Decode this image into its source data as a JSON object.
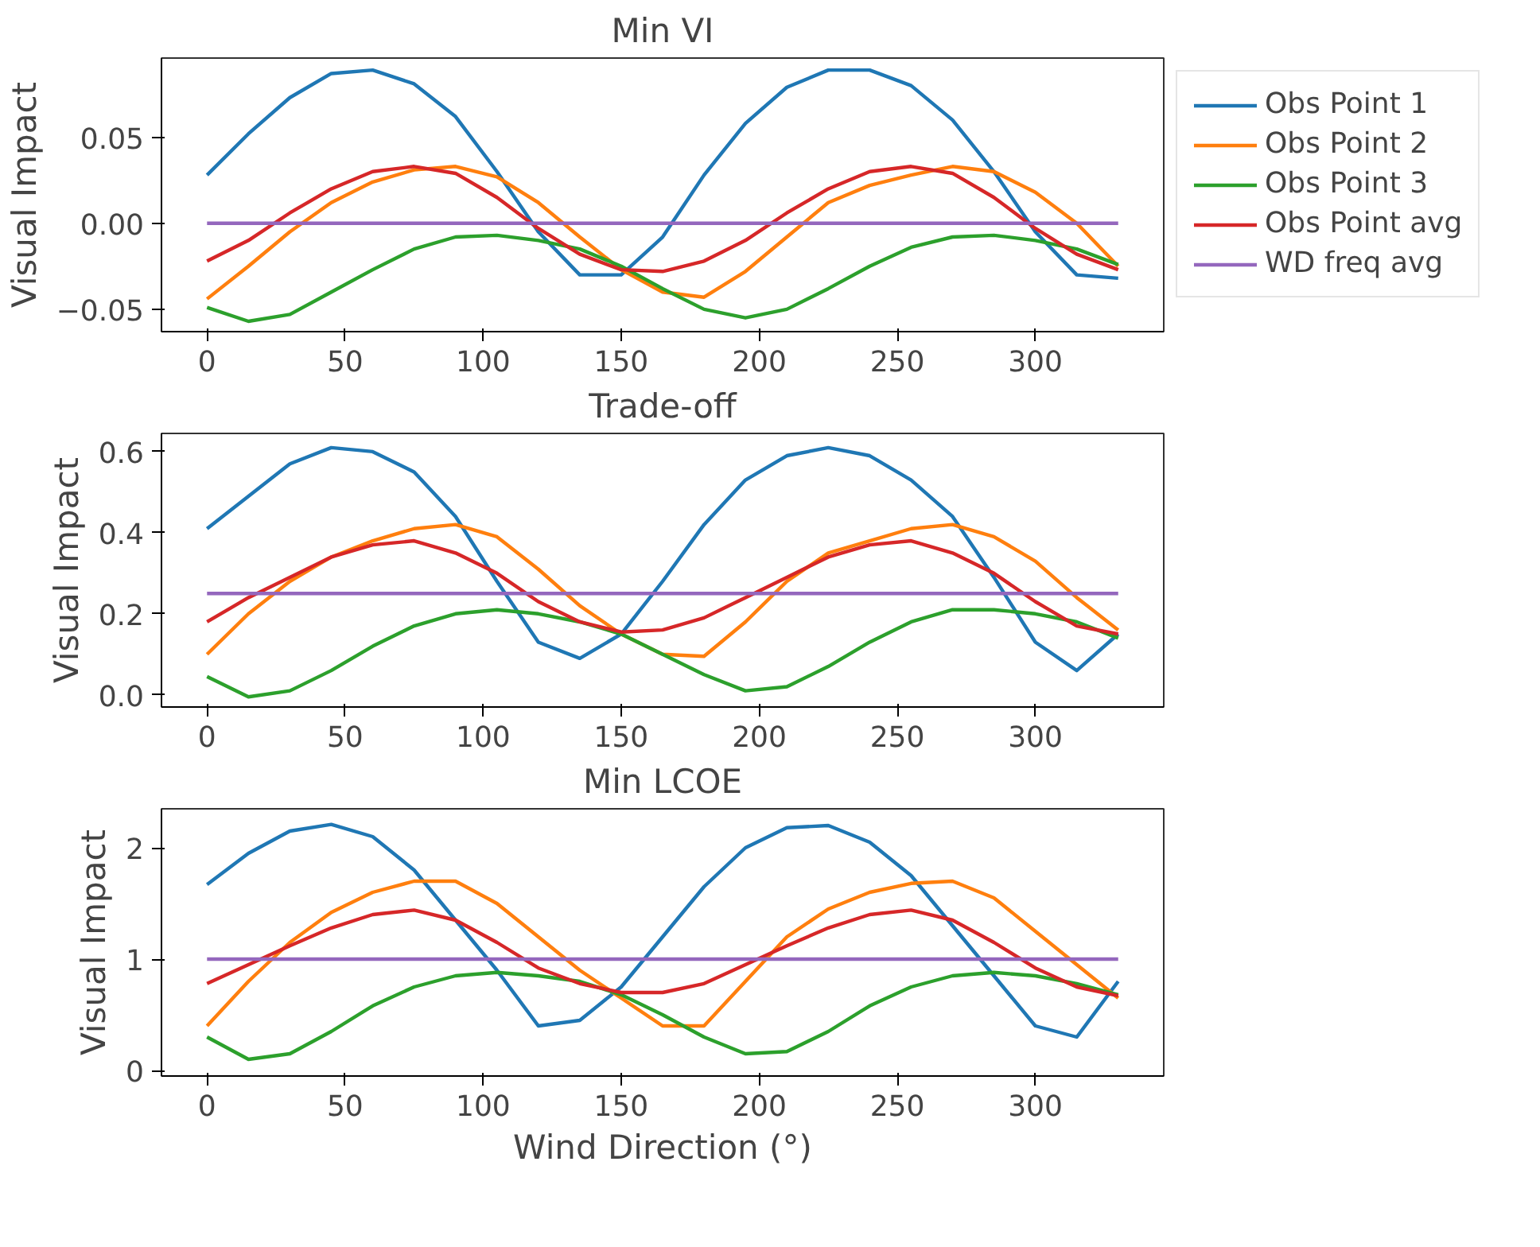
{
  "chart_data": [
    {
      "type": "line",
      "title": "Min VI",
      "ylabel": "Visual Impact",
      "xlim": [
        -16.5,
        346.5
      ],
      "xticks": [
        0,
        50,
        100,
        150,
        200,
        250,
        300
      ],
      "ylim": [
        -0.063,
        0.096
      ],
      "yticks": [
        {
          "value": -0.05,
          "label": "−0.05"
        },
        {
          "value": 0,
          "label": "0.00"
        },
        {
          "value": 0.05,
          "label": "0.05"
        }
      ],
      "grid": false,
      "legend": "right",
      "x": [
        0,
        15,
        30,
        45,
        60,
        75,
        90,
        105,
        120,
        135,
        150,
        165,
        180,
        195,
        210,
        225,
        240,
        255,
        270,
        285,
        300,
        315,
        330
      ],
      "series": [
        {
          "name": "Obs Point 1",
          "color": "#1f77b4",
          "values": [
            0.028,
            0.052,
            0.073,
            0.087,
            0.089,
            0.081,
            0.062,
            0.03,
            -0.005,
            -0.03,
            -0.03,
            -0.008,
            0.028,
            0.058,
            0.079,
            0.089,
            0.089,
            0.08,
            0.06,
            0.03,
            -0.005,
            -0.03,
            -0.032
          ]
        },
        {
          "name": "Obs Point 2",
          "color": "#ff7f0e",
          "values": [
            -0.044,
            -0.025,
            -0.005,
            0.012,
            0.024,
            0.031,
            0.033,
            0.027,
            0.012,
            -0.008,
            -0.027,
            -0.04,
            -0.043,
            -0.028,
            -0.008,
            0.012,
            0.022,
            0.028,
            0.033,
            0.03,
            0.018,
            0.0,
            -0.025
          ]
        },
        {
          "name": "Obs Point 3",
          "color": "#2ca02c",
          "values": [
            -0.049,
            -0.057,
            -0.053,
            -0.04,
            -0.027,
            -0.015,
            -0.008,
            -0.007,
            -0.01,
            -0.015,
            -0.025,
            -0.038,
            -0.05,
            -0.055,
            -0.05,
            -0.038,
            -0.025,
            -0.014,
            -0.008,
            -0.007,
            -0.01,
            -0.015,
            -0.024
          ]
        },
        {
          "name": "Obs Point avg",
          "color": "#d62728",
          "values": [
            -0.022,
            -0.01,
            0.006,
            0.02,
            0.03,
            0.033,
            0.029,
            0.015,
            -0.003,
            -0.018,
            -0.027,
            -0.028,
            -0.022,
            -0.01,
            0.006,
            0.02,
            0.03,
            0.033,
            0.029,
            0.015,
            -0.003,
            -0.018,
            -0.027
          ]
        },
        {
          "name": "WD freq avg",
          "color": "#9467bd",
          "values": [
            0,
            0,
            0,
            0,
            0,
            0,
            0,
            0,
            0,
            0,
            0,
            0,
            0,
            0,
            0,
            0,
            0,
            0,
            0,
            0,
            0,
            0,
            0
          ]
        }
      ]
    },
    {
      "type": "line",
      "title": "Trade-off",
      "ylabel": "Visual Impact",
      "xlim": [
        -16.5,
        346.5
      ],
      "xticks": [
        0,
        50,
        100,
        150,
        200,
        250,
        300
      ],
      "ylim": [
        -0.03,
        0.645
      ],
      "yticks": [
        {
          "value": 0,
          "label": "0.0"
        },
        0.2,
        0.4,
        0.6
      ],
      "grid": false,
      "x": [
        0,
        15,
        30,
        45,
        60,
        75,
        90,
        105,
        120,
        135,
        150,
        165,
        180,
        195,
        210,
        225,
        240,
        255,
        270,
        285,
        300,
        315,
        330
      ],
      "series": [
        {
          "color": "#1f77b4",
          "values": [
            0.41,
            0.49,
            0.57,
            0.61,
            0.6,
            0.55,
            0.44,
            0.28,
            0.13,
            0.09,
            0.15,
            0.28,
            0.42,
            0.53,
            0.59,
            0.61,
            0.59,
            0.53,
            0.44,
            0.29,
            0.13,
            0.06,
            0.15
          ]
        },
        {
          "color": "#ff7f0e",
          "values": [
            0.1,
            0.2,
            0.28,
            0.34,
            0.38,
            0.41,
            0.42,
            0.39,
            0.31,
            0.22,
            0.15,
            0.1,
            0.095,
            0.18,
            0.28,
            0.35,
            0.38,
            0.41,
            0.42,
            0.39,
            0.33,
            0.24,
            0.16
          ]
        },
        {
          "color": "#2ca02c",
          "values": [
            0.045,
            -0.005,
            0.01,
            0.06,
            0.12,
            0.17,
            0.2,
            0.21,
            0.2,
            0.18,
            0.15,
            0.1,
            0.05,
            0.01,
            0.02,
            0.07,
            0.13,
            0.18,
            0.21,
            0.21,
            0.2,
            0.18,
            0.14
          ]
        },
        {
          "color": "#d62728",
          "values": [
            0.18,
            0.24,
            0.29,
            0.34,
            0.37,
            0.38,
            0.35,
            0.3,
            0.23,
            0.18,
            0.155,
            0.16,
            0.19,
            0.24,
            0.29,
            0.34,
            0.37,
            0.38,
            0.35,
            0.3,
            0.23,
            0.17,
            0.15
          ]
        },
        {
          "color": "#9467bd",
          "values": [
            0.25,
            0.25,
            0.25,
            0.25,
            0.25,
            0.25,
            0.25,
            0.25,
            0.25,
            0.25,
            0.25,
            0.25,
            0.25,
            0.25,
            0.25,
            0.25,
            0.25,
            0.25,
            0.25,
            0.25,
            0.25,
            0.25,
            0.25
          ]
        }
      ]
    },
    {
      "type": "line",
      "title": "Min LCOE",
      "xlabel": "Wind Direction (°)",
      "ylabel": "Visual Impact",
      "xlim": [
        -16.5,
        346.5
      ],
      "xticks": [
        0,
        50,
        100,
        150,
        200,
        250,
        300
      ],
      "ylim": [
        -0.05,
        2.35
      ],
      "yticks": [
        0,
        1,
        2
      ],
      "grid": false,
      "x": [
        0,
        15,
        30,
        45,
        60,
        75,
        90,
        105,
        120,
        135,
        150,
        165,
        180,
        195,
        210,
        225,
        240,
        255,
        270,
        285,
        300,
        315,
        330
      ],
      "series": [
        {
          "color": "#1f77b4",
          "values": [
            1.67,
            1.95,
            2.15,
            2.21,
            2.1,
            1.8,
            1.35,
            0.9,
            0.4,
            0.45,
            0.75,
            1.2,
            1.65,
            2.0,
            2.18,
            2.2,
            2.05,
            1.75,
            1.3,
            0.85,
            0.4,
            0.3,
            0.8
          ]
        },
        {
          "color": "#ff7f0e",
          "values": [
            0.4,
            0.8,
            1.15,
            1.42,
            1.6,
            1.7,
            1.7,
            1.5,
            1.2,
            0.9,
            0.65,
            0.4,
            0.4,
            0.8,
            1.2,
            1.45,
            1.6,
            1.68,
            1.7,
            1.55,
            1.25,
            0.95,
            0.65
          ]
        },
        {
          "color": "#2ca02c",
          "values": [
            0.3,
            0.1,
            0.15,
            0.35,
            0.58,
            0.75,
            0.85,
            0.88,
            0.85,
            0.8,
            0.68,
            0.5,
            0.3,
            0.15,
            0.17,
            0.35,
            0.58,
            0.75,
            0.85,
            0.88,
            0.85,
            0.78,
            0.68
          ]
        },
        {
          "color": "#d62728",
          "values": [
            0.78,
            0.95,
            1.12,
            1.28,
            1.4,
            1.44,
            1.35,
            1.15,
            0.92,
            0.78,
            0.7,
            0.7,
            0.78,
            0.95,
            1.12,
            1.28,
            1.4,
            1.44,
            1.35,
            1.15,
            0.92,
            0.75,
            0.67
          ]
        },
        {
          "color": "#9467bd",
          "values": [
            1,
            1,
            1,
            1,
            1,
            1,
            1,
            1,
            1,
            1,
            1,
            1,
            1,
            1,
            1,
            1,
            1,
            1,
            1,
            1,
            1,
            1,
            1
          ]
        }
      ]
    }
  ]
}
